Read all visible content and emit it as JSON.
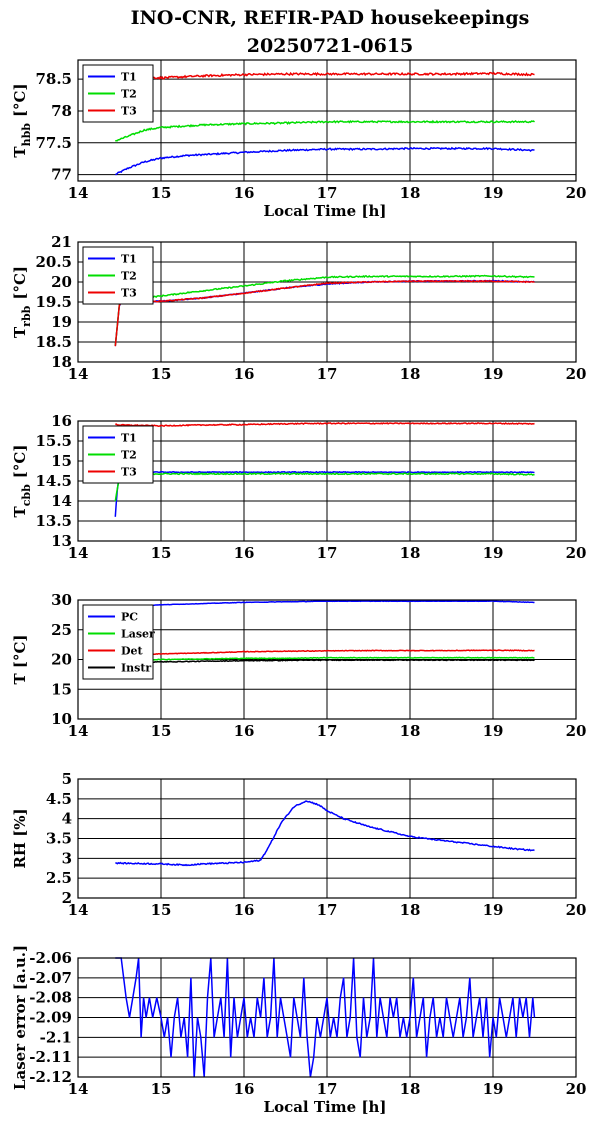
{
  "title_line1": "INO-CNR, REFIR-PAD housekeepings",
  "title_line2": "20250721-0615",
  "chart_data": [
    {
      "type": "line",
      "ylabel_main": "T",
      "ylabel_sub": "hbb",
      "ylabel_unit": "[°C]",
      "xlabel": "Local Time [h]",
      "xlim": [
        14,
        20
      ],
      "ylim": [
        76.9,
        78.8
      ],
      "xticks": [
        14,
        15,
        16,
        17,
        18,
        19,
        20
      ],
      "yticks": [
        77,
        77.5,
        78,
        78.5
      ],
      "ytick_labels": [
        "77",
        "77.5",
        "78",
        "78.5"
      ],
      "grid": true,
      "legend_position": "top-left",
      "series": [
        {
          "name": "T1",
          "color": "#0000ff",
          "noise": 0.012,
          "x": [
            14.45,
            14.6,
            14.8,
            15.0,
            15.3,
            15.6,
            16.0,
            16.5,
            17.0,
            17.5,
            18.0,
            18.5,
            19.0,
            19.5
          ],
          "y": [
            77.0,
            77.1,
            77.2,
            77.26,
            77.3,
            77.32,
            77.35,
            77.38,
            77.4,
            77.4,
            77.41,
            77.41,
            77.41,
            77.38
          ]
        },
        {
          "name": "T2",
          "color": "#00dd00",
          "noise": 0.012,
          "x": [
            14.45,
            14.6,
            14.8,
            15.0,
            15.5,
            16.0,
            16.5,
            17.0,
            17.5,
            18.0,
            18.5,
            19.0,
            19.5
          ],
          "y": [
            77.53,
            77.6,
            77.7,
            77.74,
            77.78,
            77.8,
            77.81,
            77.83,
            77.83,
            77.83,
            77.83,
            77.83,
            77.83
          ]
        },
        {
          "name": "T3",
          "color": "#ee0000",
          "noise": 0.015,
          "x": [
            14.45,
            14.7,
            15.0,
            15.5,
            16.0,
            16.5,
            17.0,
            17.5,
            18.0,
            18.5,
            19.0,
            19.5
          ],
          "y": [
            78.5,
            78.53,
            78.52,
            78.55,
            78.57,
            78.58,
            78.58,
            78.58,
            78.58,
            78.58,
            78.59,
            78.57
          ]
        }
      ]
    },
    {
      "type": "line",
      "ylabel_main": "T",
      "ylabel_sub": "rbb",
      "ylabel_unit": "[°C]",
      "xlabel": "",
      "xlim": [
        14,
        20
      ],
      "ylim": [
        18,
        21
      ],
      "xticks": [
        14,
        15,
        16,
        17,
        18,
        19,
        20
      ],
      "yticks": [
        18,
        18.5,
        19,
        19.5,
        20,
        20.5,
        21
      ],
      "ytick_labels": [
        "18",
        "18.5",
        "19",
        "19.5",
        "20",
        "20.5",
        "21"
      ],
      "grid": true,
      "legend_position": "top-left",
      "series": [
        {
          "name": "T1",
          "color": "#0000ff",
          "noise": 0.012,
          "x": [
            14.45,
            14.5,
            14.55,
            15.0,
            15.5,
            16.0,
            16.5,
            17.0,
            17.5,
            18.0,
            18.5,
            19.0,
            19.5
          ],
          "y": [
            18.4,
            19.45,
            19.48,
            19.52,
            19.6,
            19.72,
            19.85,
            19.95,
            20.0,
            20.02,
            20.02,
            20.03,
            20.0
          ]
        },
        {
          "name": "T2",
          "color": "#00dd00",
          "noise": 0.015,
          "x": [
            14.45,
            14.5,
            14.55,
            15.0,
            15.5,
            16.0,
            16.5,
            17.0,
            17.5,
            18.0,
            18.5,
            19.0,
            19.5
          ],
          "y": [
            18.4,
            19.45,
            19.55,
            19.65,
            19.78,
            19.9,
            20.03,
            20.12,
            20.14,
            20.14,
            20.14,
            20.15,
            20.12
          ]
        },
        {
          "name": "T3",
          "color": "#ee0000",
          "noise": 0.012,
          "x": [
            14.45,
            14.5,
            14.55,
            15.0,
            15.5,
            16.0,
            16.5,
            17.0,
            17.5,
            18.0,
            18.5,
            19.0,
            19.5
          ],
          "y": [
            18.4,
            19.45,
            19.48,
            19.52,
            19.6,
            19.72,
            19.85,
            19.97,
            20.0,
            20.02,
            20.02,
            20.02,
            20.0
          ]
        }
      ]
    },
    {
      "type": "line",
      "ylabel_main": "T",
      "ylabel_sub": "cbb",
      "ylabel_unit": "[°C]",
      "xlabel": "",
      "xlim": [
        14,
        20
      ],
      "ylim": [
        13,
        16
      ],
      "xticks": [
        14,
        15,
        16,
        17,
        18,
        19,
        20
      ],
      "yticks": [
        13,
        13.5,
        14,
        14.5,
        15,
        15.5,
        16
      ],
      "ytick_labels": [
        "13",
        "13.5",
        "14",
        "14.5",
        "15",
        "15.5",
        "16"
      ],
      "grid": true,
      "legend_position": "top-left",
      "series": [
        {
          "name": "T1",
          "color": "#0000ff",
          "noise": 0.01,
          "x": [
            14.45,
            14.47,
            14.5,
            14.55,
            15.0,
            15.5,
            16.0,
            16.5,
            17.0,
            17.5,
            18.0,
            18.5,
            19.0,
            19.5
          ],
          "y": [
            13.6,
            14.2,
            14.7,
            14.72,
            14.72,
            14.72,
            14.72,
            14.72,
            14.72,
            14.72,
            14.72,
            14.72,
            14.72,
            14.72
          ]
        },
        {
          "name": "T2",
          "color": "#00dd00",
          "noise": 0.015,
          "x": [
            14.45,
            14.5,
            14.55,
            15.0,
            15.5,
            16.0,
            16.5,
            17.0,
            17.5,
            18.0,
            18.5,
            19.0,
            19.5
          ],
          "y": [
            14.0,
            14.62,
            14.68,
            14.68,
            14.68,
            14.68,
            14.68,
            14.68,
            14.68,
            14.68,
            14.68,
            14.68,
            14.66
          ]
        },
        {
          "name": "T3",
          "color": "#ee0000",
          "noise": 0.012,
          "x": [
            14.45,
            14.5,
            15.0,
            15.5,
            16.0,
            16.5,
            17.0,
            17.5,
            18.0,
            18.5,
            19.0,
            19.5
          ],
          "y": [
            15.92,
            15.9,
            15.88,
            15.9,
            15.91,
            15.93,
            15.94,
            15.94,
            15.94,
            15.94,
            15.94,
            15.93
          ]
        }
      ]
    },
    {
      "type": "line",
      "ylabel_main": "T [°C]",
      "ylabel_sub": "",
      "ylabel_unit": "",
      "xlabel": "",
      "xlim": [
        14,
        20
      ],
      "ylim": [
        10,
        30
      ],
      "xticks": [
        14,
        15,
        16,
        17,
        18,
        19,
        20
      ],
      "yticks": [
        10,
        15,
        20,
        25,
        30
      ],
      "ytick_labels": [
        "10",
        "15",
        "20",
        "25",
        "30"
      ],
      "grid": true,
      "legend_position": "top-left",
      "series": [
        {
          "name": "PC",
          "color": "#0000ff",
          "noise": 0.03,
          "x": [
            14.45,
            14.6,
            15.0,
            15.5,
            16.0,
            16.5,
            17.0,
            17.5,
            18.0,
            18.5,
            19.0,
            19.5
          ],
          "y": [
            28.8,
            28.95,
            29.2,
            29.4,
            29.6,
            29.7,
            29.8,
            29.8,
            29.8,
            29.8,
            29.8,
            29.6
          ]
        },
        {
          "name": "Laser",
          "color": "#00dd00",
          "noise": 0.05,
          "x": [
            14.45,
            15.0,
            15.5,
            16.0,
            16.5,
            17.0,
            17.5,
            18.0,
            18.5,
            19.0,
            19.5
          ],
          "y": [
            19.8,
            20.0,
            20.1,
            20.2,
            20.2,
            20.3,
            20.3,
            20.3,
            20.3,
            20.3,
            20.3
          ]
        },
        {
          "name": "Det",
          "color": "#ee0000",
          "noise": 0.05,
          "x": [
            14.45,
            15.0,
            15.5,
            16.0,
            16.5,
            17.0,
            17.5,
            18.0,
            18.5,
            19.0,
            19.5
          ],
          "y": [
            20.7,
            20.95,
            21.1,
            21.3,
            21.4,
            21.45,
            21.5,
            21.5,
            21.5,
            21.55,
            21.5
          ]
        },
        {
          "name": "Instr",
          "color": "#000000",
          "noise": 0.06,
          "x": [
            14.45,
            15.0,
            15.5,
            16.0,
            16.5,
            17.0,
            17.5,
            18.0,
            18.5,
            19.0,
            19.5
          ],
          "y": [
            19.4,
            19.6,
            19.7,
            19.8,
            19.85,
            19.9,
            19.9,
            19.9,
            19.9,
            19.9,
            19.9
          ]
        }
      ]
    },
    {
      "type": "line",
      "ylabel_main": "RH [%]",
      "ylabel_sub": "",
      "ylabel_unit": "",
      "xlabel": "",
      "xlim": [
        14,
        20
      ],
      "ylim": [
        2,
        5
      ],
      "xticks": [
        14,
        15,
        16,
        17,
        18,
        19,
        20
      ],
      "yticks": [
        2,
        2.5,
        3,
        3.5,
        4,
        4.5,
        5
      ],
      "ytick_labels": [
        "2",
        "2.5",
        "3",
        "3.5",
        "4",
        "4.5",
        "5"
      ],
      "grid": true,
      "legend_position": "",
      "series": [
        {
          "name": "",
          "color": "#0000ff",
          "noise": 0.015,
          "x": [
            14.45,
            15.0,
            15.3,
            15.5,
            15.8,
            16.0,
            16.2,
            16.3,
            16.45,
            16.6,
            16.75,
            16.9,
            17.0,
            17.2,
            17.5,
            17.8,
            18.0,
            18.3,
            18.6,
            19.0,
            19.3,
            19.5
          ],
          "y": [
            2.88,
            2.86,
            2.83,
            2.86,
            2.88,
            2.9,
            2.95,
            3.3,
            3.9,
            4.3,
            4.45,
            4.35,
            4.2,
            4.0,
            3.8,
            3.65,
            3.55,
            3.47,
            3.4,
            3.3,
            3.23,
            3.2
          ]
        }
      ]
    },
    {
      "type": "line",
      "ylabel_main": "Laser error [a.u.]",
      "ylabel_sub": "",
      "ylabel_unit": "",
      "xlabel": "Local Time [h]",
      "xlim": [
        14,
        20
      ],
      "ylim": [
        -2.12,
        -2.06
      ],
      "xticks": [
        14,
        15,
        16,
        17,
        18,
        19,
        20
      ],
      "yticks": [
        -2.12,
        -2.11,
        -2.1,
        -2.09,
        -2.08,
        -2.07,
        -2.06
      ],
      "ytick_labels": [
        "-2.12",
        "-2.11",
        "-2.1",
        "-2.09",
        "-2.08",
        "-2.07",
        "-2.06"
      ],
      "grid": true,
      "legend_position": "",
      "series": [
        {
          "name": "",
          "color": "#0000ff",
          "noise": 0,
          "x": [
            14.45,
            14.52,
            14.58,
            14.62,
            14.66,
            14.7,
            14.73,
            14.76,
            14.79,
            14.82,
            14.86,
            14.9,
            14.95,
            15.0,
            15.04,
            15.08,
            15.12,
            15.16,
            15.2,
            15.24,
            15.28,
            15.32,
            15.36,
            15.4,
            15.44,
            15.48,
            15.52,
            15.56,
            15.6,
            15.64,
            15.68,
            15.72,
            15.76,
            15.8,
            15.84,
            15.88,
            15.92,
            15.96,
            16.0,
            16.04,
            16.08,
            16.12,
            16.16,
            16.2,
            16.24,
            16.28,
            16.32,
            16.36,
            16.4,
            16.44,
            16.48,
            16.52,
            16.56,
            16.6,
            16.64,
            16.68,
            16.72,
            16.76,
            16.8,
            16.84,
            16.88,
            16.92,
            16.96,
            17.0,
            17.04,
            17.08,
            17.12,
            17.16,
            17.2,
            17.24,
            17.28,
            17.32,
            17.36,
            17.4,
            17.44,
            17.48,
            17.52,
            17.56,
            17.6,
            17.64,
            17.68,
            17.72,
            17.76,
            17.8,
            17.84,
            17.88,
            17.92,
            17.96,
            18.0,
            18.04,
            18.08,
            18.12,
            18.16,
            18.2,
            18.24,
            18.28,
            18.32,
            18.36,
            18.4,
            18.44,
            18.48,
            18.52,
            18.56,
            18.6,
            18.64,
            18.68,
            18.72,
            18.76,
            18.8,
            18.84,
            18.88,
            18.92,
            18.96,
            19.0,
            19.04,
            19.08,
            19.12,
            19.16,
            19.2,
            19.24,
            19.28,
            19.32,
            19.36,
            19.4,
            19.44,
            19.48,
            19.5
          ],
          "y": [
            -2.06,
            -2.06,
            -2.08,
            -2.09,
            -2.08,
            -2.07,
            -2.06,
            -2.1,
            -2.08,
            -2.09,
            -2.08,
            -2.09,
            -2.08,
            -2.09,
            -2.1,
            -2.09,
            -2.11,
            -2.09,
            -2.08,
            -2.1,
            -2.09,
            -2.11,
            -2.07,
            -2.12,
            -2.09,
            -2.1,
            -2.12,
            -2.08,
            -2.06,
            -2.1,
            -2.09,
            -2.08,
            -2.1,
            -2.06,
            -2.11,
            -2.08,
            -2.1,
            -2.09,
            -2.08,
            -2.1,
            -2.09,
            -2.1,
            -2.08,
            -2.09,
            -2.07,
            -2.1,
            -2.09,
            -2.06,
            -2.1,
            -2.08,
            -2.09,
            -2.1,
            -2.11,
            -2.08,
            -2.09,
            -2.1,
            -2.07,
            -2.1,
            -2.12,
            -2.11,
            -2.09,
            -2.1,
            -2.09,
            -2.08,
            -2.1,
            -2.09,
            -2.1,
            -2.08,
            -2.07,
            -2.1,
            -2.09,
            -2.06,
            -2.1,
            -2.11,
            -2.08,
            -2.1,
            -2.09,
            -2.06,
            -2.1,
            -2.08,
            -2.09,
            -2.1,
            -2.08,
            -2.09,
            -2.08,
            -2.1,
            -2.09,
            -2.1,
            -2.09,
            -2.07,
            -2.1,
            -2.09,
            -2.08,
            -2.11,
            -2.09,
            -2.08,
            -2.1,
            -2.09,
            -2.1,
            -2.08,
            -2.09,
            -2.1,
            -2.09,
            -2.08,
            -2.1,
            -2.09,
            -2.07,
            -2.1,
            -2.09,
            -2.08,
            -2.1,
            -2.08,
            -2.11,
            -2.09,
            -2.1,
            -2.08,
            -2.09,
            -2.1,
            -2.09,
            -2.08,
            -2.1,
            -2.08,
            -2.09,
            -2.08,
            -2.1,
            -2.08,
            -2.09
          ]
        }
      ]
    }
  ]
}
